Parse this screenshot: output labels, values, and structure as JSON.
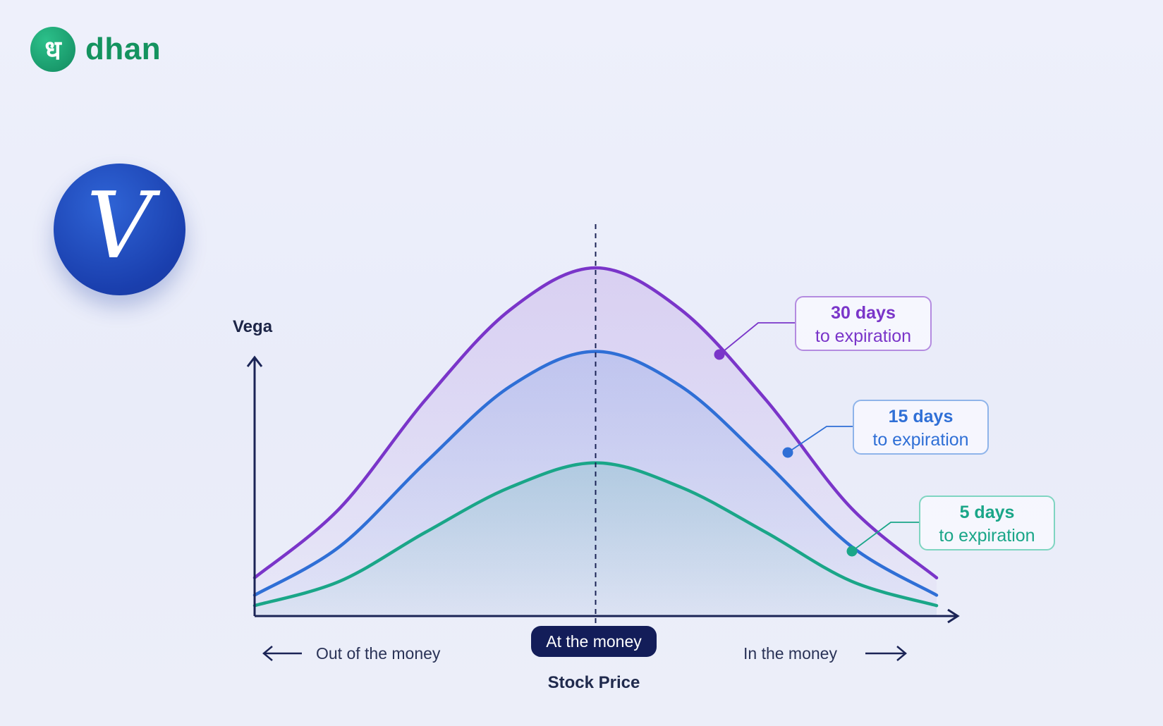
{
  "brand": {
    "glyph": "ध",
    "name": "dhan",
    "color": "#14935f"
  },
  "badge": {
    "symbol": "V"
  },
  "atm_label": "At the money",
  "otm_label": "Out of the money",
  "itm_label": "In the money",
  "callouts": [
    {
      "days": "30 days",
      "text": "to expiration",
      "color": "#7a35c9"
    },
    {
      "days": "15 days",
      "text": "to expiration",
      "color": "#2f6fd6"
    },
    {
      "days": "5 days",
      "text": "to expiration",
      "color": "#1aa688"
    }
  ],
  "chart_data": {
    "type": "line",
    "xlabel": "Stock Price",
    "ylabel": "Vega",
    "x": [
      -1,
      -0.75,
      -0.5,
      -0.25,
      0,
      0.25,
      0.5,
      0.75,
      1
    ],
    "series": [
      {
        "name": "30 days to expiration",
        "color": "#7a35c9",
        "values": [
          0.11,
          0.31,
          0.62,
          0.88,
          1.0,
          0.88,
          0.62,
          0.31,
          0.11
        ]
      },
      {
        "name": "15 days to expiration",
        "color": "#2f6fd6",
        "values": [
          0.06,
          0.2,
          0.44,
          0.66,
          0.76,
          0.66,
          0.44,
          0.2,
          0.06
        ]
      },
      {
        "name": "5 days to expiration",
        "color": "#1aa688",
        "values": [
          0.03,
          0.1,
          0.24,
          0.37,
          0.44,
          0.37,
          0.24,
          0.1,
          0.03
        ]
      }
    ],
    "xlim": [
      -1,
      1
    ],
    "ylim": [
      0,
      1.1
    ],
    "grid": false,
    "legend": "callouts on right"
  }
}
